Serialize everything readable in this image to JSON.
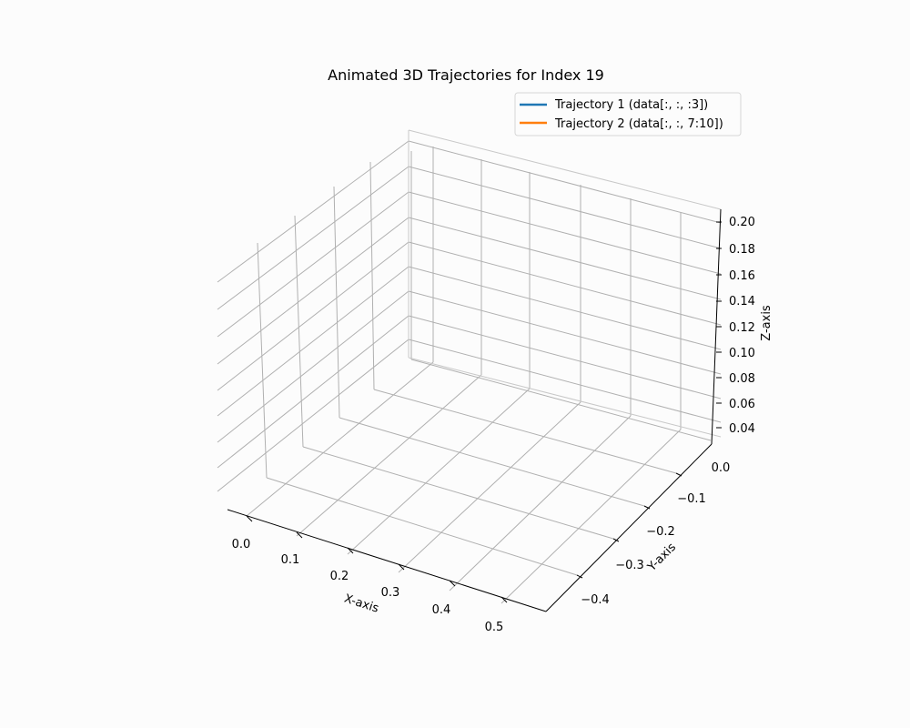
{
  "chart_data": {
    "type": "line",
    "projection": "3d",
    "title": "Animated 3D Trajectories for Index 19",
    "xlabel": "X-axis",
    "ylabel": "Y-axis",
    "zlabel": "Z-axis",
    "x_ticks": [
      "0.0",
      "0.1",
      "0.2",
      "0.3",
      "0.4",
      "0.5"
    ],
    "y_ticks": [
      "0.0",
      "−0.1",
      "−0.2",
      "−0.3",
      "−0.4"
    ],
    "z_ticks": [
      "0.04",
      "0.06",
      "0.08",
      "0.10",
      "0.12",
      "0.14",
      "0.16",
      "0.18",
      "0.20"
    ],
    "grid": true,
    "legend_position": "top-right",
    "series": [
      {
        "name": "Trajectory 1 (data[:, :, :3])",
        "color": "#1f77b4",
        "points": []
      },
      {
        "name": "Trajectory 2 (data[:, :, 7:10])",
        "color": "#ff7f0e",
        "points": []
      }
    ]
  }
}
